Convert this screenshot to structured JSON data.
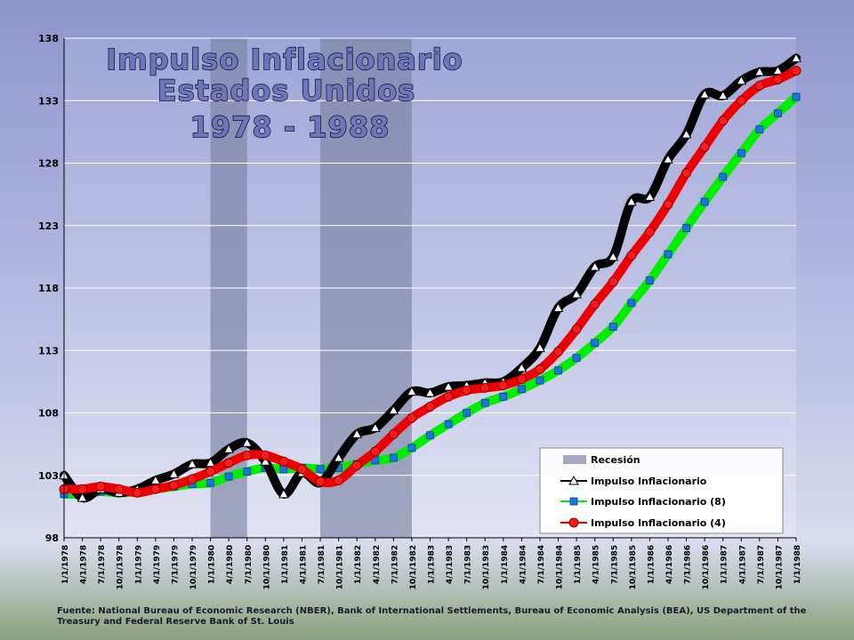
{
  "title_lines": [
    "Impulso Inflacionario",
    "Estados Unidos",
    "1978 - 1988"
  ],
  "source_text": "Fuente: National Bureau of Economic Research (NBER), Bank of International Settlements, Bureau of Economic Analysis (BEA), US Department of the Treasury and Federal Reserve Bank of St. Louis",
  "chart_data": {
    "type": "line",
    "title": "Impulso Inflacionario Estados Unidos 1978 - 1988",
    "ylim": [
      98,
      138
    ],
    "yticks": [
      98,
      103,
      108,
      113,
      118,
      123,
      128,
      133,
      138
    ],
    "grid": true,
    "legend_position": "bottom-right",
    "x": [
      "1/1/1978",
      "4/1/1978",
      "7/1/1978",
      "10/1/1978",
      "1/1/1979",
      "4/1/1979",
      "7/1/1979",
      "10/1/1979",
      "1/1/1980",
      "4/1/1980",
      "7/1/1980",
      "10/1/1980",
      "1/1/1981",
      "4/1/1981",
      "7/1/1981",
      "10/1/1981",
      "1/1/1982",
      "4/1/1982",
      "7/1/1982",
      "10/1/1982",
      "1/1/1983",
      "4/1/1983",
      "7/1/1983",
      "10/1/1983",
      "1/1/1984",
      "4/1/1984",
      "7/1/1984",
      "10/1/1984",
      "1/1/1985",
      "4/1/1985",
      "7/1/1985",
      "10/1/1985",
      "1/1/1986",
      "4/1/1986",
      "7/1/1986",
      "10/1/1986",
      "1/1/1987",
      "4/1/1987",
      "7/1/1987",
      "10/1/1987",
      "1/1/1988"
    ],
    "recessions": [
      [
        "1/1/1980",
        "7/1/1980"
      ],
      [
        "7/1/1981",
        "10/1/1982"
      ]
    ],
    "series": [
      {
        "name": "Recesión",
        "kind": "band",
        "color": "#8a8fae"
      },
      {
        "name": "Impulso Inflacionario",
        "color": "#000000",
        "marker": "triangle",
        "values": [
          103.0,
          101.2,
          101.9,
          101.6,
          101.9,
          102.6,
          103.1,
          103.9,
          104.0,
          105.1,
          105.6,
          104.1,
          101.5,
          103.2,
          102.4,
          104.4,
          106.3,
          106.8,
          108.2,
          109.7,
          109.6,
          110.1,
          110.2,
          110.4,
          110.5,
          111.6,
          113.2,
          116.4,
          117.5,
          119.7,
          120.5,
          124.9,
          125.3,
          128.3,
          130.3,
          133.5,
          133.4,
          134.6,
          135.3,
          135.4,
          136.4
        ]
      },
      {
        "name": "Impulso Inflacionario (8)",
        "color": "#00ee00",
        "marker": "square",
        "values": [
          101.5,
          101.5,
          101.7,
          101.6,
          101.7,
          101.9,
          102.1,
          102.3,
          102.4,
          102.9,
          103.3,
          103.6,
          103.5,
          103.6,
          103.5,
          103.6,
          103.9,
          104.2,
          104.4,
          105.2,
          106.2,
          107.1,
          108.0,
          108.8,
          109.3,
          109.9,
          110.6,
          111.4,
          112.4,
          113.6,
          114.9,
          116.8,
          118.6,
          120.7,
          122.8,
          124.9,
          126.9,
          128.8,
          130.7,
          132.0,
          133.3
        ]
      },
      {
        "name": "Impulso Inflacionario (4)",
        "color": "#ee0000",
        "marker": "circle",
        "values": [
          101.9,
          101.9,
          102.1,
          101.9,
          101.6,
          101.9,
          102.2,
          102.7,
          103.3,
          104.0,
          104.6,
          104.6,
          104.1,
          103.5,
          102.5,
          102.6,
          103.8,
          104.9,
          106.3,
          107.6,
          108.5,
          109.3,
          109.8,
          110.0,
          110.2,
          110.7,
          111.5,
          112.9,
          114.7,
          116.7,
          118.5,
          120.6,
          122.5,
          124.7,
          127.2,
          129.3,
          131.4,
          133.0,
          134.2,
          134.7,
          135.4
        ]
      }
    ]
  }
}
